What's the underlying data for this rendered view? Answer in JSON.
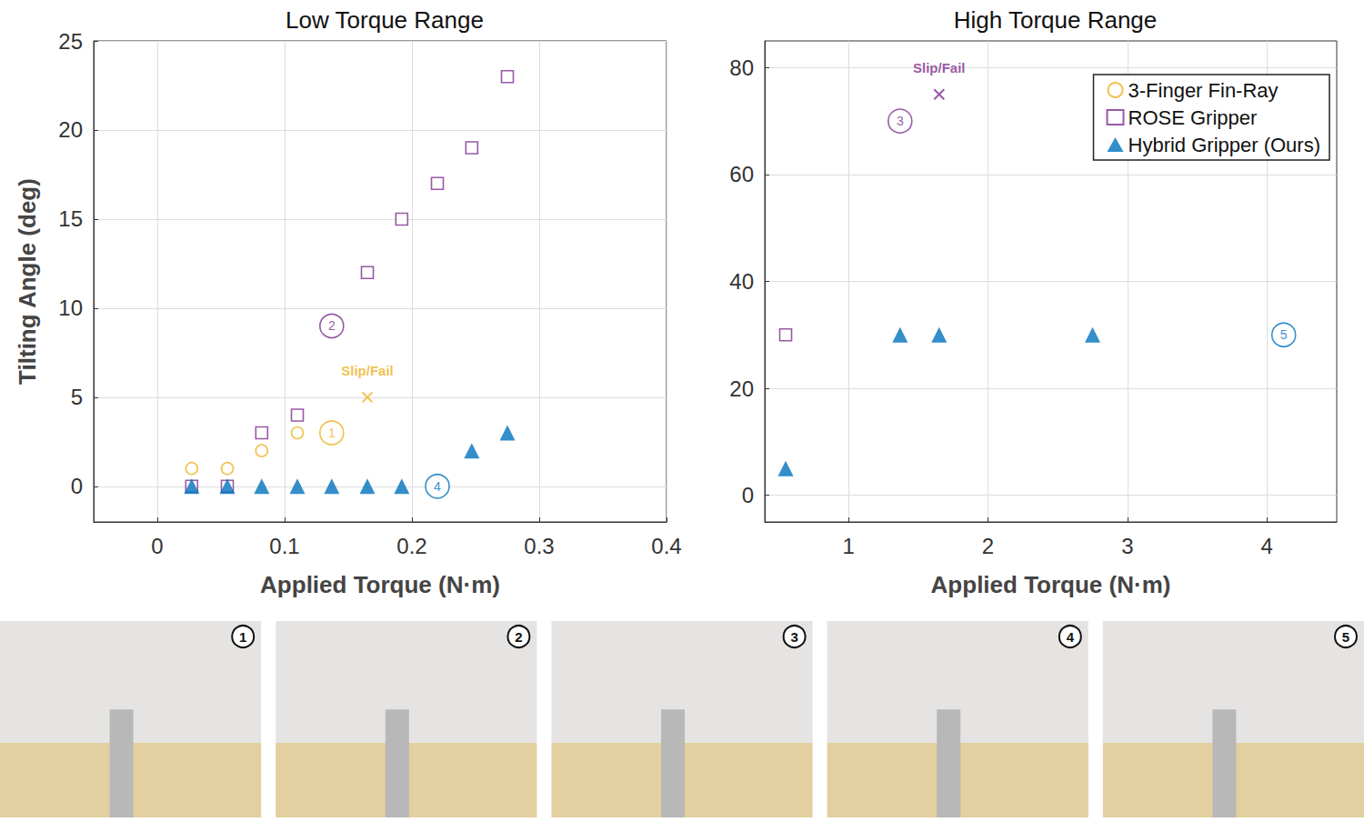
{
  "chart_data": [
    {
      "type": "scatter",
      "title": "Low Torque Range",
      "x_label": "Applied Torque (N·m)",
      "y_label": "Tilting Angle (deg)",
      "xlim": [
        -0.05,
        0.4
      ],
      "xticks": [
        0,
        0.1,
        0.2,
        0.3,
        0.4
      ],
      "ylim": [
        -2,
        25
      ],
      "yticks": [
        0,
        5,
        10,
        15,
        20,
        25
      ],
      "grid": true,
      "series": [
        {
          "name": "3-Finger Fin-Ray",
          "color": "#EDB120",
          "marker": "circle_open",
          "points": [
            {
              "x": 0.027,
              "y": 1
            },
            {
              "x": 0.055,
              "y": 1
            },
            {
              "x": 0.082,
              "y": 2
            },
            {
              "x": 0.11,
              "y": 3
            },
            {
              "x": 0.137,
              "y": 3,
              "label": "1",
              "marker": "circled"
            },
            {
              "x": 0.165,
              "y": 5,
              "label": "Slip/Fail",
              "marker": "x"
            }
          ]
        },
        {
          "name": "ROSE Gripper",
          "color": "#7E2F8E",
          "marker": "square_open",
          "points": [
            {
              "x": 0.027,
              "y": 0
            },
            {
              "x": 0.055,
              "y": 0
            },
            {
              "x": 0.082,
              "y": 3
            },
            {
              "x": 0.11,
              "y": 4
            },
            {
              "x": 0.137,
              "y": 9,
              "label": "2",
              "marker": "circled"
            },
            {
              "x": 0.165,
              "y": 12
            },
            {
              "x": 0.192,
              "y": 15
            },
            {
              "x": 0.22,
              "y": 17
            },
            {
              "x": 0.247,
              "y": 19
            },
            {
              "x": 0.275,
              "y": 23
            }
          ]
        },
        {
          "name": "Hybrid Gripper (Ours)",
          "color": "#0072BD",
          "marker": "triangle",
          "points": [
            {
              "x": 0.027,
              "y": 0
            },
            {
              "x": 0.055,
              "y": 0
            },
            {
              "x": 0.082,
              "y": 0
            },
            {
              "x": 0.11,
              "y": 0
            },
            {
              "x": 0.137,
              "y": 0
            },
            {
              "x": 0.165,
              "y": 0
            },
            {
              "x": 0.192,
              "y": 0
            },
            {
              "x": 0.22,
              "y": 0,
              "label": "4",
              "marker": "circled"
            },
            {
              "x": 0.247,
              "y": 2
            },
            {
              "x": 0.275,
              "y": 3
            }
          ]
        }
      ]
    },
    {
      "type": "scatter",
      "title": "High Torque Range",
      "x_label": "Applied Torque (N·m)",
      "xlim": [
        0.4,
        4.5
      ],
      "xticks": [
        1,
        2,
        3,
        4
      ],
      "ylim": [
        -5,
        85
      ],
      "yticks": [
        0,
        20,
        40,
        60,
        80
      ],
      "grid": true,
      "legend": "top-right",
      "series": [
        {
          "name": "3-Finger Fin-Ray",
          "color": "#EDB120",
          "marker": "circle_open",
          "points": []
        },
        {
          "name": "ROSE Gripper",
          "color": "#7E2F8E",
          "marker": "square_open",
          "points": [
            {
              "x": 0.55,
              "y": 30
            },
            {
              "x": 1.37,
              "y": 70,
              "label": "3",
              "marker": "circled"
            },
            {
              "x": 1.65,
              "y": 75,
              "label": "Slip/Fail",
              "marker": "x"
            }
          ]
        },
        {
          "name": "Hybrid Gripper (Ours)",
          "color": "#0072BD",
          "marker": "triangle",
          "points": [
            {
              "x": 0.55,
              "y": 5
            },
            {
              "x": 1.37,
              "y": 30
            },
            {
              "x": 1.65,
              "y": 30
            },
            {
              "x": 2.75,
              "y": 30
            },
            {
              "x": 4.12,
              "y": 30,
              "label": "5",
              "marker": "circled"
            }
          ]
        }
      ]
    }
  ],
  "photos": [
    "1",
    "2",
    "3",
    "4",
    "5"
  ]
}
